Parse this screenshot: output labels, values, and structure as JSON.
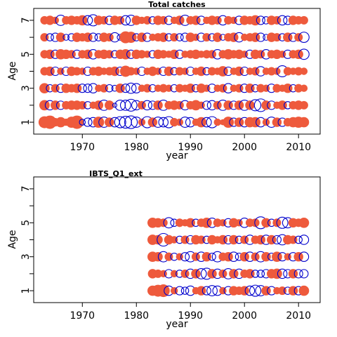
{
  "chart_data": [
    {
      "type": "scatter",
      "title": "Total catches",
      "xlabel": "year",
      "ylabel": "Age",
      "xlim": [
        1961,
        2014
      ],
      "ylim": [
        0.3,
        7.7
      ],
      "xticks": [
        1970,
        1980,
        1990,
        2000,
        2010
      ],
      "yticks_labeled": [
        1,
        3,
        5,
        7
      ],
      "yticks_minor": [
        2,
        4,
        6
      ],
      "grid": false,
      "legend": "none",
      "marker_encoding": "filled red = positive residual, open blue circle = negative residual, size ~ magnitude",
      "years": [
        1963,
        1964,
        1965,
        1966,
        1967,
        1968,
        1969,
        1970,
        1971,
        1972,
        1973,
        1974,
        1975,
        1976,
        1977,
        1978,
        1979,
        1980,
        1981,
        1982,
        1983,
        1984,
        1985,
        1986,
        1987,
        1988,
        1989,
        1990,
        1991,
        1992,
        1993,
        1994,
        1995,
        1996,
        1997,
        1998,
        1999,
        2000,
        2001,
        2002,
        2003,
        2004,
        2005,
        2006,
        2007,
        2008,
        2009,
        2010,
        2011
      ],
      "residuals": {
        "1": [
          0.8,
          1.0,
          0.4,
          0.6,
          0.3,
          0.7,
          1.0,
          -0.2,
          -0.4,
          -0.5,
          0.7,
          -0.6,
          0.5,
          -0.5,
          -0.7,
          -0.8,
          -0.9,
          -0.6,
          0.3,
          -0.7,
          0.5,
          -0.6,
          -0.5,
          -0.7,
          0.4,
          0.3,
          -0.6,
          -0.5,
          0.3,
          0.6,
          -0.5,
          -0.7,
          0.3,
          0.2,
          0.7,
          -0.4,
          0.5,
          -0.5,
          0.6,
          0.6,
          -0.5,
          0.3,
          -0.6,
          0.5,
          -0.4,
          0.4,
          0.6,
          0.7,
          0.6
        ],
        "2": [
          0.6,
          -0.5,
          0.5,
          -0.4,
          0.4,
          0.5,
          0.5,
          0.4,
          -0.3,
          0.3,
          0.5,
          -0.6,
          0.5,
          -0.1,
          -0.6,
          -0.6,
          -0.8,
          -0.5,
          0.4,
          -0.5,
          -0.4,
          0.5,
          -0.6,
          0.4,
          0.5,
          0.4,
          -0.5,
          0.4,
          0.6,
          0.3,
          -0.4,
          -0.5,
          0.4,
          -0.6,
          0.5,
          -0.4,
          0.5,
          -0.6,
          0.5,
          -0.7,
          -0.9,
          0.5,
          -0.4,
          0.3,
          0.5,
          -0.3,
          0.4,
          0.5,
          0.4
        ],
        "3": [
          0.6,
          -0.3,
          0.4,
          -0.4,
          0.5,
          0.4,
          0.5,
          -0.4,
          -0.4,
          -0.5,
          0.3,
          0.4,
          -0.3,
          -0.2,
          0.5,
          -0.4,
          -0.6,
          -0.5,
          0.3,
          0.4,
          -0.3,
          0.3,
          0.4,
          0.3,
          -0.3,
          0.4,
          0.3,
          0.5,
          -0.3,
          0.5,
          0.3,
          -0.4,
          0.3,
          0.4,
          -0.5,
          0.3,
          0.4,
          -0.4,
          0.5,
          -0.3,
          0.4,
          0.3,
          -0.4,
          0.4,
          0.3,
          0.5,
          -0.3,
          0.4,
          0.3
        ],
        "4": [
          0.4,
          0.5,
          -0.4,
          0.3,
          -0.4,
          0.5,
          0.4,
          0.3,
          -0.4,
          0.4,
          0.5,
          0.3,
          0.4,
          0.5,
          -0.4,
          0.7,
          0.4,
          0.3,
          -0.4,
          0.3,
          0.5,
          0.3,
          -0.4,
          0.5,
          -0.3,
          0.4,
          0.3,
          -0.4,
          0.3,
          0.5,
          -0.3,
          0.4,
          0.3,
          0.6,
          -0.4,
          0.3,
          0.5,
          -0.4,
          0.3,
          0.4,
          -0.5,
          0.3,
          0.4,
          0.3,
          -0.7,
          0.4,
          0.3,
          0.4,
          0.3
        ],
        "5": [
          0.4,
          0.5,
          -0.4,
          0.6,
          0.5,
          0.4,
          -0.4,
          0.4,
          0.5,
          -0.5,
          0.4,
          0.5,
          0.4,
          -0.3,
          0.5,
          0.6,
          -0.4,
          0.5,
          0.4,
          0.3,
          -0.3,
          0.5,
          0.4,
          0.3,
          0.5,
          -0.4,
          0.3,
          0.4,
          0.5,
          0.3,
          0.4,
          0.4,
          -0.5,
          0.4,
          0.6,
          0.4,
          0.5,
          0.3,
          -0.4,
          0.5,
          0.4,
          -0.5,
          0.4,
          0.5,
          0.3,
          -0.4,
          0.4,
          0.5,
          -0.6
        ],
        "6": [
          0.4,
          -0.3,
          -0.4,
          0.5,
          -0.2,
          -0.3,
          0.5,
          0.4,
          0.5,
          -0.4,
          -0.3,
          0.5,
          0.4,
          -0.5,
          -0.2,
          0.8,
          0.7,
          -0.3,
          0.5,
          -0.4,
          0.3,
          0.4,
          0.5,
          -0.3,
          0.4,
          -0.3,
          -0.4,
          0.5,
          0.3,
          -0.4,
          0.4,
          -0.3,
          0.5,
          -0.2,
          0.4,
          0.5,
          -0.5,
          0.3,
          0.4,
          0.5,
          -0.4,
          -0.2,
          0.5,
          0.4,
          -0.3,
          0.5,
          -0.4,
          0.4,
          -0.6
        ],
        "7": [
          0.4,
          0.5,
          0.3,
          -0.6,
          0.4,
          0.5,
          0.4,
          0.6,
          -0.5,
          -0.7,
          0.5,
          0.4,
          -0.4,
          0.5,
          0.4,
          -0.5,
          -0.6,
          0.5,
          0.3,
          0.4,
          -0.3,
          0.5,
          0.4,
          -0.4,
          0.3,
          0.5,
          -0.6,
          0.4,
          0.5,
          -0.4,
          0.3,
          0.5,
          0.4,
          -0.5,
          0.4,
          0.3,
          -0.4,
          0.5,
          0.4,
          0.6,
          -0.4,
          -0.3,
          0.5,
          0.4,
          -0.5,
          -0.4,
          0.5,
          0.4,
          0.4
        ]
      }
    },
    {
      "type": "scatter",
      "title": "IBTS_Q1_ext",
      "xlabel": "year",
      "ylabel": "Age",
      "xlim": [
        1961,
        2014
      ],
      "ylim": [
        0.3,
        7.7
      ],
      "xticks": [
        1970,
        1980,
        1990,
        2000,
        2010
      ],
      "yticks_labeled": [
        1,
        3,
        5,
        7
      ],
      "yticks_minor": [
        2,
        4,
        6
      ],
      "grid": false,
      "legend": "none",
      "marker_encoding": "filled red = positive residual, open blue circle = negative residual, size ~ magnitude",
      "years": [
        1983,
        1984,
        1985,
        1986,
        1987,
        1988,
        1989,
        1990,
        1991,
        1992,
        1993,
        1994,
        1995,
        1996,
        1997,
        1998,
        1999,
        2000,
        2001,
        2002,
        2003,
        2004,
        2005,
        2006,
        2007,
        2008,
        2009,
        2010,
        2011
      ],
      "residuals": {
        "1": [
          0.6,
          0.8,
          0.9,
          -0.5,
          0.3,
          -0.4,
          -0.3,
          -0.5,
          0.3,
          0.5,
          -0.4,
          -0.6,
          -0.5,
          0.3,
          -0.4,
          0.5,
          0.4,
          0.5,
          -0.5,
          -0.7,
          -0.6,
          0.5,
          -0.4,
          0.3,
          0.4,
          -0.3,
          0.5,
          -0.4,
          0.6
        ],
        "2": [
          0.5,
          0.4,
          0.3,
          -0.4,
          0.3,
          -0.3,
          0.4,
          -0.5,
          0.5,
          -0.6,
          -0.7,
          0.5,
          -0.5,
          0.4,
          -0.6,
          0.5,
          -0.5,
          0.4,
          0.5,
          -0.3,
          -0.3,
          -0.4,
          0.5,
          0.6,
          -0.5,
          -0.4,
          0.5,
          -0.4,
          -0.4
        ],
        "3": [
          0.6,
          0.5,
          -0.6,
          0.4,
          -0.3,
          0.3,
          -0.4,
          -0.6,
          0.4,
          -0.5,
          0.5,
          -0.3,
          -0.6,
          0.4,
          0.5,
          -0.5,
          -0.3,
          0.5,
          -0.5,
          0.4,
          -0.6,
          0.5,
          -0.3,
          0.6,
          -0.4,
          0.3,
          -0.4,
          0.5,
          -0.5
        ],
        "4": [
          0.6,
          0.5,
          -0.9,
          0.5,
          0.3,
          -0.3,
          0.4,
          -0.4,
          0.5,
          0.4,
          -0.3,
          0.5,
          0.3,
          0.5,
          -0.4,
          0.5,
          -0.3,
          0.4,
          -0.5,
          0.4,
          0.5,
          -0.5,
          0.5,
          -0.4,
          -0.6,
          0.5,
          0.4,
          -0.3,
          -0.5
        ],
        "5": [
          0.6,
          0.5,
          0.4,
          -0.6,
          -0.3,
          0.4,
          0.3,
          0.5,
          -0.3,
          0.4,
          0.6,
          -0.5,
          0.4,
          0.3,
          -0.4,
          0.5,
          0.3,
          -0.5,
          0.4,
          0.4,
          -0.8,
          0.5,
          -0.3,
          0.4,
          -0.7,
          -0.6,
          0.5,
          0.4,
          0.6
        ]
      }
    }
  ],
  "colors": {
    "positive": "#ee5a3c",
    "negative": "#0000cc",
    "axis": "#000000"
  }
}
